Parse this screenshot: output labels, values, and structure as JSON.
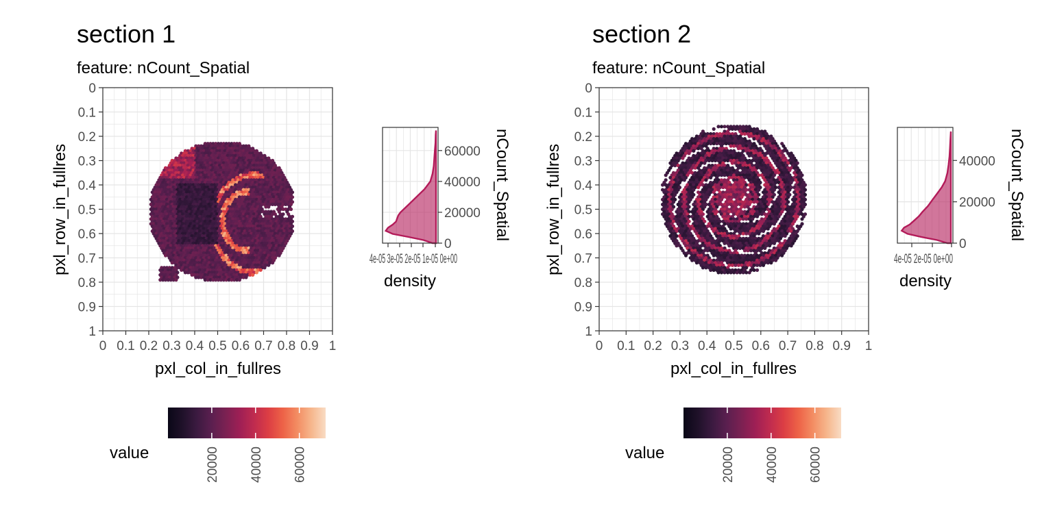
{
  "colors": {
    "scale": [
      "#0a0717",
      "#1f1129",
      "#3b1a40",
      "#5a1f4f",
      "#7a2152",
      "#9e1f55",
      "#bf2b4f",
      "#dc3e44",
      "#ed6247",
      "#f38c62",
      "#f6b68c",
      "#f9dcc4"
    ],
    "density_line": "#b31b59",
    "density_fill": "#b31b59",
    "grid": "#e5e5e5",
    "panel_border": "#333333",
    "text": "#000000",
    "tick_text": "#4d4d4d"
  },
  "chart_data": [
    {
      "type": "scatter",
      "title": "section 1",
      "subtitle": "feature:  nCount_Spatial",
      "xlabel": "pxl_col_in_fullres",
      "ylabel": "pxl_row_in_fullres",
      "xlim": [
        0,
        1
      ],
      "ylim": [
        0,
        1
      ],
      "y_reversed": true,
      "grid": true,
      "x_ticks": [
        "0",
        "0.1",
        "0.2",
        "0.3",
        "0.4",
        "0.5",
        "0.6",
        "0.7",
        "0.8",
        "0.9",
        "1"
      ],
      "y_ticks": [
        "0",
        "0.1",
        "0.2",
        "0.3",
        "0.4",
        "0.5",
        "0.6",
        "0.7",
        "0.8",
        "0.9",
        "1"
      ],
      "tissue_extent": {
        "x": [
          0.21,
          0.83
        ],
        "y": [
          0.22,
          0.8
        ]
      },
      "colorbar": {
        "title": "value",
        "range": [
          0,
          72000
        ],
        "tick_values": [
          20000,
          40000,
          60000
        ],
        "tick_labels": [
          "20000",
          "40000",
          "60000"
        ]
      },
      "density": {
        "xlabel": "density",
        "ylabel": "nCount_Spatial",
        "x_tick_labels_overlapping": "4e-05 3e-05 2e-05 1e-05 0e+00",
        "y_ticks": [
          0,
          20000,
          40000,
          60000
        ],
        "y_tick_labels": [
          "0",
          "20000",
          "40000",
          "60000"
        ],
        "ylim": [
          0,
          75000
        ],
        "xlim": [
          0,
          4.5e-05
        ],
        "y": [
          0,
          2000,
          4000,
          6000,
          8000,
          10000,
          12000,
          14000,
          16000,
          18000,
          20000,
          25000,
          30000,
          35000,
          40000,
          45000,
          50000,
          55000,
          60000,
          65000,
          70000,
          73000
        ],
        "density": [
          3e-06,
          1.1e-05,
          2.4e-05,
          3.8e-05,
          4.4e-05,
          4.2e-05,
          3.8e-05,
          3.5e-05,
          3.4e-05,
          3.3e-05,
          3.1e-05,
          2.4e-05,
          1.7e-05,
          1e-05,
          5e-06,
          3e-06,
          2e-06,
          1.5e-06,
          1e-06,
          5e-07,
          3e-07,
          0
        ]
      }
    },
    {
      "type": "scatter",
      "title": "section 2",
      "subtitle": "feature:  nCount_Spatial",
      "xlabel": "pxl_col_in_fullres",
      "ylabel": "pxl_row_in_fullres",
      "xlim": [
        0,
        1
      ],
      "ylim": [
        0,
        1
      ],
      "y_reversed": true,
      "grid": true,
      "x_ticks": [
        "0",
        "0.1",
        "0.2",
        "0.3",
        "0.4",
        "0.5",
        "0.6",
        "0.7",
        "0.8",
        "0.9",
        "1"
      ],
      "y_ticks": [
        "0",
        "0.1",
        "0.2",
        "0.3",
        "0.4",
        "0.5",
        "0.6",
        "0.7",
        "0.8",
        "0.9",
        "1"
      ],
      "tissue_extent": {
        "x": [
          0.23,
          0.77
        ],
        "y": [
          0.15,
          0.77
        ]
      },
      "colorbar": {
        "title": "value",
        "range": [
          0,
          72000
        ],
        "tick_values": [
          20000,
          40000,
          60000
        ],
        "tick_labels": [
          "20000",
          "40000",
          "60000"
        ]
      },
      "density": {
        "xlabel": "density",
        "ylabel": "nCount_Spatial",
        "x_tick_labels_overlapping": "4e-05 2e-05 0e+00",
        "y_ticks": [
          0,
          20000,
          40000
        ],
        "y_tick_labels": [
          "0",
          "20000",
          "40000"
        ],
        "ylim": [
          0,
          56000
        ],
        "xlim": [
          0,
          4.5e-05
        ],
        "y": [
          0,
          1500,
          3000,
          4500,
          6000,
          7500,
          9000,
          11000,
          13000,
          15000,
          18000,
          21000,
          24000,
          27000,
          30000,
          34000,
          38000,
          42000,
          46000,
          50000,
          54000
        ],
        "density": [
          3e-06,
          1.2e-05,
          2.6e-05,
          3.8e-05,
          4.3e-05,
          4.1e-05,
          3.6e-05,
          3.2e-05,
          2.8e-05,
          2.5e-05,
          2e-05,
          1.6e-05,
          1.2e-05,
          8e-06,
          5e-06,
          3e-06,
          2e-06,
          1.2e-06,
          8e-07,
          4e-07,
          0
        ]
      }
    }
  ]
}
